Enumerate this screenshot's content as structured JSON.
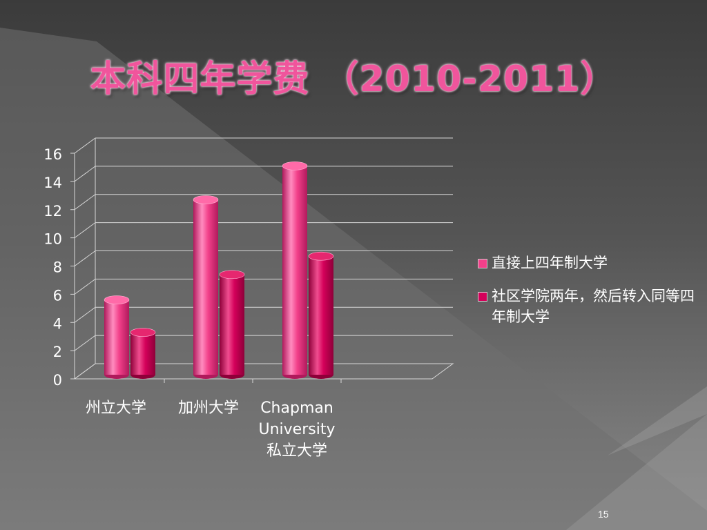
{
  "slide": {
    "title": "本科四年学费 （2010-2011）",
    "page_number": "15"
  },
  "colors": {
    "background_dark": "#3a3a3a",
    "background_light": "#8a8a8a",
    "series1": "#f2408a",
    "series2": "#d4005a",
    "title": "#f0559c"
  },
  "chart_data": {
    "type": "bar",
    "style": "3d-cylinder",
    "title": "",
    "xlabel": "",
    "ylabel": "",
    "ylim": [
      0,
      16
    ],
    "y_ticks": [
      "0",
      "2",
      "4",
      "6",
      "8",
      "10",
      "12",
      "14",
      "16"
    ],
    "categories": [
      [
        "州立大学"
      ],
      [
        "加州大学"
      ],
      [
        "Chapman",
        "University",
        "私立大学"
      ]
    ],
    "series": [
      {
        "name": "直接上四年制大学",
        "values": [
          5.6,
          12.7,
          15.1
        ]
      },
      {
        "name": "社区学院两年，然后转入同等四年制大学",
        "values": [
          3.3,
          7.4,
          8.7
        ]
      }
    ],
    "legend_position": "right",
    "grid": true
  }
}
